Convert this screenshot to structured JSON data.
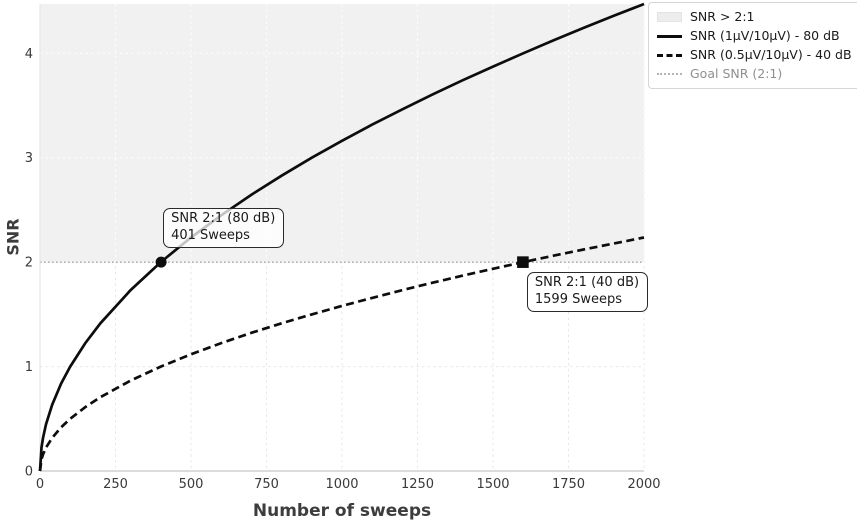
{
  "chart_data": {
    "type": "line",
    "title": "",
    "xlabel": "Number of sweeps",
    "ylabel": "SNR",
    "xlim": [
      0,
      2000
    ],
    "ylim": [
      0,
      4.472
    ],
    "x_ticks": [
      0,
      250,
      500,
      750,
      1000,
      1250,
      1500,
      1750,
      2000
    ],
    "y_ticks": [
      0,
      1,
      2,
      3,
      4
    ],
    "grid": true,
    "x": [
      0,
      5,
      10,
      20,
      40,
      70,
      100,
      150,
      200,
      300,
      400,
      500,
      600,
      700,
      800,
      900,
      1000,
      1100,
      1200,
      1300,
      1400,
      1500,
      1600,
      1700,
      1800,
      1900,
      2000
    ],
    "series": [
      {
        "name": "SNR (1μV/10μV) - 80 dB",
        "line_style": "solid",
        "color": "#0d0d0d",
        "values": [
          0,
          0.224,
          0.316,
          0.447,
          0.632,
          0.837,
          1.0,
          1.225,
          1.414,
          1.732,
          2.0,
          2.236,
          2.449,
          2.646,
          2.828,
          3.0,
          3.162,
          3.317,
          3.464,
          3.606,
          3.742,
          3.873,
          4.0,
          4.123,
          4.243,
          4.359,
          4.472
        ]
      },
      {
        "name": "SNR (0.5μV/10μV) - 40 dB",
        "line_style": "dashed",
        "color": "#0d0d0d",
        "values": [
          0,
          0.112,
          0.158,
          0.224,
          0.316,
          0.418,
          0.5,
          0.612,
          0.707,
          0.866,
          1.0,
          1.118,
          1.225,
          1.323,
          1.414,
          1.5,
          1.581,
          1.658,
          1.732,
          1.803,
          1.871,
          1.936,
          2.0,
          2.062,
          2.121,
          2.179,
          2.236
        ]
      }
    ],
    "shaded_region": {
      "label": "SNR > 2:1",
      "y_min": 2,
      "y_max": 4.472,
      "color": "#f1f1f1"
    },
    "goal_line": {
      "label": "Goal SNR (2:1)",
      "y": 2,
      "style": "dotted",
      "color": "#a3a3a3"
    },
    "annotations": [
      {
        "marker": "circle",
        "x": 401,
        "y": 2,
        "text_line1": "SNR 2:1 (80 dB)",
        "text_line2": "401 Sweeps",
        "placement": "above-right"
      },
      {
        "marker": "square",
        "x": 1599,
        "y": 2,
        "text_line1": "SNR 2:1 (40 dB)",
        "text_line2": "1599 Sweeps",
        "placement": "below-right"
      }
    ],
    "legend": {
      "position": "outside-top-right",
      "items": [
        {
          "label": "SNR > 2:1",
          "swatch": "patch",
          "color": "#ededed",
          "text_color": "#1a1a1a"
        },
        {
          "label": "SNR (1μV/10μV) - 80 dB",
          "swatch": "line-solid",
          "color": "#0d0d0d",
          "text_color": "#1a1a1a"
        },
        {
          "label": "SNR (0.5μV/10μV) - 40 dB",
          "swatch": "line-dashed",
          "color": "#0d0d0d",
          "text_color": "#1a1a1a"
        },
        {
          "label": "Goal SNR (2:1)",
          "swatch": "line-dotted",
          "color": "#b5b5b5",
          "text_color": "#8f8f8f"
        }
      ]
    }
  }
}
